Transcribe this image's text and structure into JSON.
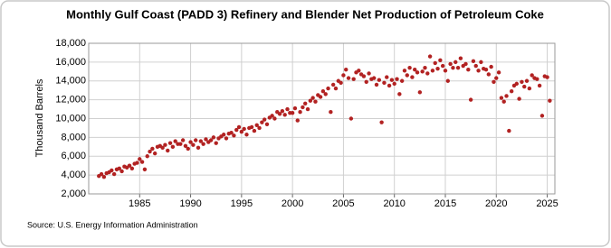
{
  "chart_data": {
    "type": "scatter",
    "title": "Monthly Gulf Coast (PADD 3) Refinery and Blender Net Production of Petroleum Coke",
    "y_label": "Thousand Barrels",
    "source": "Source: U.S. Energy Information Administration",
    "color": "#b22222",
    "grid": true,
    "xlim": [
      1980,
      2025.75
    ],
    "xticks": [
      1985,
      1990,
      1995,
      2000,
      2005,
      2010,
      2015,
      2020,
      2025
    ],
    "ylim": [
      2000,
      18000
    ],
    "yticks": [
      {
        "value": 2000,
        "label": "2,000"
      },
      {
        "value": 4000,
        "label": "4,000"
      },
      {
        "value": 6000,
        "label": "6,000"
      },
      {
        "value": 8000,
        "label": "8,000"
      },
      {
        "value": 10000,
        "label": "10,000"
      },
      {
        "value": 12000,
        "label": "12,000"
      },
      {
        "value": 14000,
        "label": "14,000"
      },
      {
        "value": 16000,
        "label": "16,000"
      },
      {
        "value": 18000,
        "label": "18,000"
      }
    ],
    "x": [
      1981,
      1981.25,
      1981.5,
      1981.75,
      1982,
      1982.25,
      1982.5,
      1982.75,
      1983,
      1983.25,
      1983.5,
      1983.75,
      1984,
      1984.25,
      1984.5,
      1984.75,
      1985,
      1985.25,
      1985.5,
      1985.75,
      1986,
      1986.25,
      1986.5,
      1986.75,
      1987,
      1987.25,
      1987.5,
      1987.75,
      1988,
      1988.25,
      1988.5,
      1988.75,
      1989,
      1989.25,
      1989.5,
      1989.75,
      1990,
      1990.25,
      1990.5,
      1990.75,
      1991,
      1991.25,
      1991.5,
      1991.75,
      1992,
      1992.25,
      1992.5,
      1992.75,
      1993,
      1993.25,
      1993.5,
      1993.75,
      1994,
      1994.25,
      1994.5,
      1994.75,
      1995,
      1995.25,
      1995.5,
      1995.75,
      1996,
      1996.25,
      1996.5,
      1996.75,
      1997,
      1997.25,
      1997.5,
      1997.75,
      1998,
      1998.25,
      1998.5,
      1998.75,
      1999,
      1999.25,
      1999.5,
      1999.75,
      2000,
      2000.25,
      2000.5,
      2000.75,
      2001,
      2001.25,
      2001.5,
      2001.75,
      2002,
      2002.25,
      2002.5,
      2002.75,
      2003,
      2003.25,
      2003.5,
      2003.75,
      2004,
      2004.25,
      2004.5,
      2004.75,
      2005,
      2005.25,
      2005.5,
      2005.75,
      2006,
      2006.25,
      2006.5,
      2006.75,
      2007,
      2007.25,
      2007.5,
      2007.75,
      2008,
      2008.25,
      2008.5,
      2008.75,
      2009,
      2009.25,
      2009.5,
      2009.75,
      2010,
      2010.25,
      2010.5,
      2010.75,
      2011,
      2011.25,
      2011.5,
      2011.75,
      2012,
      2012.25,
      2012.5,
      2012.75,
      2013,
      2013.25,
      2013.5,
      2013.75,
      2014,
      2014.25,
      2014.5,
      2014.75,
      2015,
      2015.25,
      2015.5,
      2015.75,
      2016,
      2016.25,
      2016.5,
      2016.75,
      2017,
      2017.25,
      2017.5,
      2017.75,
      2018,
      2018.25,
      2018.5,
      2018.75,
      2019,
      2019.25,
      2019.5,
      2019.75,
      2020,
      2020.25,
      2020.5,
      2020.75,
      2021,
      2021.25,
      2021.5,
      2021.75,
      2022,
      2022.25,
      2022.5,
      2022.75,
      2023,
      2023.25,
      2023.5,
      2023.75,
      2024,
      2024.25,
      2024.5,
      2024.75,
      2025,
      2025.25
    ],
    "values": [
      3900,
      4100,
      3800,
      4200,
      4300,
      4500,
      4100,
      4600,
      4700,
      4400,
      4900,
      4800,
      5000,
      4700,
      5200,
      5300,
      5700,
      5400,
      4600,
      6000,
      6500,
      6800,
      6300,
      7000,
      7100,
      6900,
      7200,
      6600,
      7400,
      7000,
      7600,
      7300,
      7300,
      7700,
      7100,
      6800,
      7500,
      7200,
      7700,
      6900,
      7600,
      7300,
      7800,
      7500,
      7700,
      8000,
      7400,
      7900,
      8100,
      8300,
      7900,
      8400,
      8500,
      8200,
      8800,
      9100,
      8600,
      8900,
      8300,
      9000,
      9100,
      8700,
      9300,
      9000,
      9600,
      9900,
      9400,
      10100,
      10300,
      10000,
      10700,
      10500,
      10800,
      10400,
      11000,
      10600,
      10600,
      11100,
      9800,
      10700,
      11200,
      11600,
      11000,
      11900,
      12200,
      11800,
      12500,
      12300,
      12900,
      12600,
      13200,
      10700,
      13600,
      13200,
      14000,
      13800,
      14600,
      15200,
      14300,
      10000,
      14200,
      14900,
      15100,
      14700,
      14500,
      13900,
      14800,
      14200,
      14300,
      13600,
      14100,
      9600,
      13800,
      14400,
      13500,
      14100,
      13700,
      14200,
      12600,
      14000,
      15100,
      14600,
      15400,
      14400,
      15200,
      14900,
      12800,
      15000,
      15400,
      14800,
      16600,
      15100,
      15900,
      15300,
      16200,
      15600,
      15100,
      14000,
      15800,
      15400,
      16000,
      15400,
      16400,
      15600,
      15800,
      15200,
      12000,
      16100,
      15600,
      15100,
      16000,
      15300,
      15200,
      14700,
      15500,
      13900,
      14300,
      14900,
      12200,
      11800,
      12400,
      8700,
      12900,
      13500,
      13700,
      12100,
      13900,
      13400,
      14000,
      13200,
      14600,
      14300,
      14200,
      13500,
      10300,
      14500,
      14400,
      11900
    ]
  }
}
